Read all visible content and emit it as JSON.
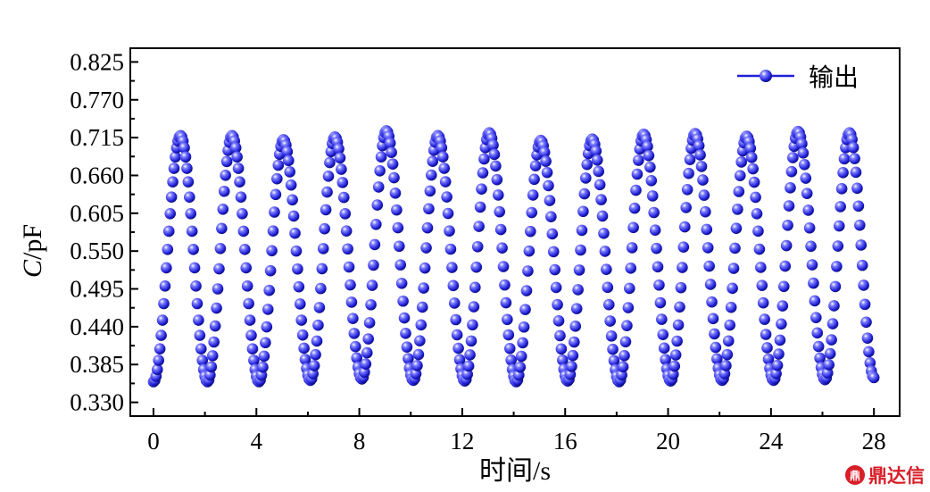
{
  "chart_data": {
    "type": "scatter",
    "title": "",
    "xlabel": "时间/s",
    "ylabel_italic": "C",
    "ylabel_unit": "/pF",
    "xlim": [
      -0.9,
      29.0
    ],
    "ylim": [
      0.31,
      0.845
    ],
    "xticks": [
      0,
      4,
      8,
      12,
      16,
      20,
      24,
      28
    ],
    "yticks": [
      0.33,
      0.385,
      0.44,
      0.495,
      0.55,
      0.605,
      0.66,
      0.715,
      0.77,
      0.825
    ],
    "ytick_labels": [
      "0.330",
      "0.385",
      "0.440",
      "0.495",
      "0.550",
      "0.605",
      "0.660",
      "0.715",
      "0.770",
      "0.825"
    ],
    "legend_position": "top-right",
    "grid": false,
    "series": [
      {
        "name": "输出",
        "color": "#1f1fd6",
        "marker": "sphere",
        "peak_times": [
          1.05,
          3.05,
          5.05,
          7.05,
          9.05,
          11.05,
          13.05,
          15.05,
          17.05,
          19.05,
          21.05,
          23.05,
          25.05,
          27.05
        ],
        "peak_values": [
          0.718,
          0.718,
          0.712,
          0.716,
          0.725,
          0.718,
          0.722,
          0.711,
          0.713,
          0.72,
          0.721,
          0.717,
          0.724,
          0.722
        ],
        "trough_times": [
          0.0,
          2.1,
          4.1,
          6.1,
          8.1,
          10.1,
          12.1,
          14.1,
          16.1,
          18.1,
          20.1,
          22.1,
          24.1,
          26.1,
          28.0
        ],
        "trough_values": [
          0.36,
          0.36,
          0.36,
          0.362,
          0.364,
          0.362,
          0.361,
          0.36,
          0.361,
          0.36,
          0.361,
          0.362,
          0.362,
          0.363,
          0.366
        ],
        "sample_interval_s": 0.05
      }
    ]
  },
  "watermark": {
    "icon": "鼎",
    "text": "鼎达信"
  }
}
